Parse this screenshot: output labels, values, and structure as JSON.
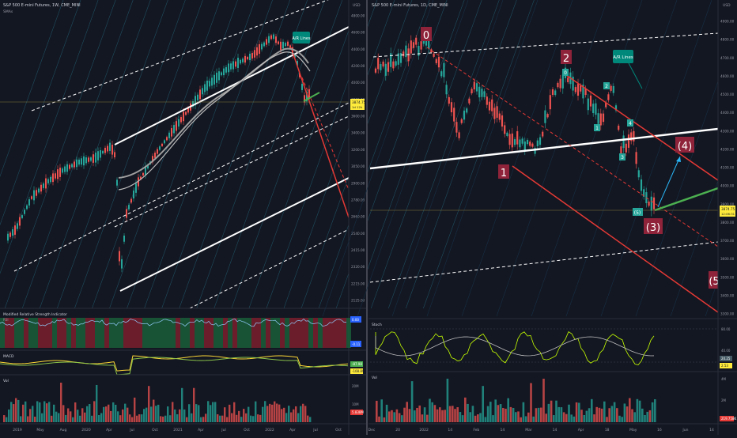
{
  "left_panel": {
    "title": "S&P 500 E-mini Futures, 1W, CME_MINI",
    "indicator_label": "SMAs",
    "currency": "USD",
    "price_axis": [
      "4800.00",
      "4600.00",
      "4400.00",
      "4200.00",
      "4000.00",
      "3800.00",
      "3600.00",
      "3400.00",
      "3200.00",
      "3050.00",
      "2900.00",
      "2780.00",
      "2660.00",
      "2540.00",
      "2415.00",
      "2320.00",
      "2215.00",
      "2125.00"
    ],
    "last_price": "3874.75",
    "countdown": "1d 12h",
    "annotation": "A/R Lines",
    "x_labels": [
      "2019",
      "May",
      "Aug",
      "2020",
      "Apr",
      "Jul",
      "Oct",
      "2021",
      "Apr",
      "Jul",
      "Oct",
      "2022",
      "Apr",
      "Jul",
      "Oct"
    ],
    "rsi_title": "Modified Relative Strength Indicator",
    "rsi_sub": "RSI",
    "rsi_values": [
      "0.00",
      "-0.11"
    ],
    "macd_title": "MACD",
    "macd_values": [
      "-87.98",
      "-108.89"
    ],
    "vol_title": "Vol",
    "vol_axis": [
      "20M",
      "10M"
    ],
    "vol_value": "5.838M"
  },
  "right_panel": {
    "title": "S&P 500 E-mini Futures, 1D, CME_MINI",
    "currency": "USD",
    "price_axis": [
      "4900.00",
      "4800.00",
      "4700.00",
      "4600.00",
      "4500.00",
      "4400.00",
      "4300.00",
      "4200.00",
      "4100.00",
      "4000.00",
      "3900.00",
      "3800.00",
      "3700.00",
      "3600.00",
      "3500.00",
      "3400.00",
      "3300.00"
    ],
    "last_price": "3874.75",
    "countdown": "12:06:31",
    "annotation": "A/R Lines",
    "wave_labels": {
      "w0": "0",
      "w1": "1",
      "w2": "2",
      "w3": "(3)",
      "w4": "(4)",
      "w5": "(5"
    },
    "sub_labels": [
      "0",
      "1",
      "2",
      "3",
      "4",
      "(5)"
    ],
    "x_labels": [
      "Dec",
      "20",
      "2022",
      "14",
      "Feb",
      "14",
      "Mar",
      "14",
      "Apr",
      "18",
      "May",
      "16",
      "Jun",
      "14"
    ],
    "stoch_title": "Stoch",
    "stoch_axis": [
      "80.00",
      "40.00"
    ],
    "stoch_values": [
      "24.25",
      "2.53"
    ],
    "vol_title": "Vol",
    "vol_axis": [
      "4M",
      "2M"
    ],
    "vol_value": "219.758K"
  },
  "colors": {
    "bg": "#131722",
    "up": "#26a69a",
    "down": "#ef5350",
    "trend": "#ffffff",
    "red_line": "#e53935",
    "green_line": "#4caf50",
    "fan": "#1e3a5f",
    "price_tag": "#ffeb3b"
  }
}
